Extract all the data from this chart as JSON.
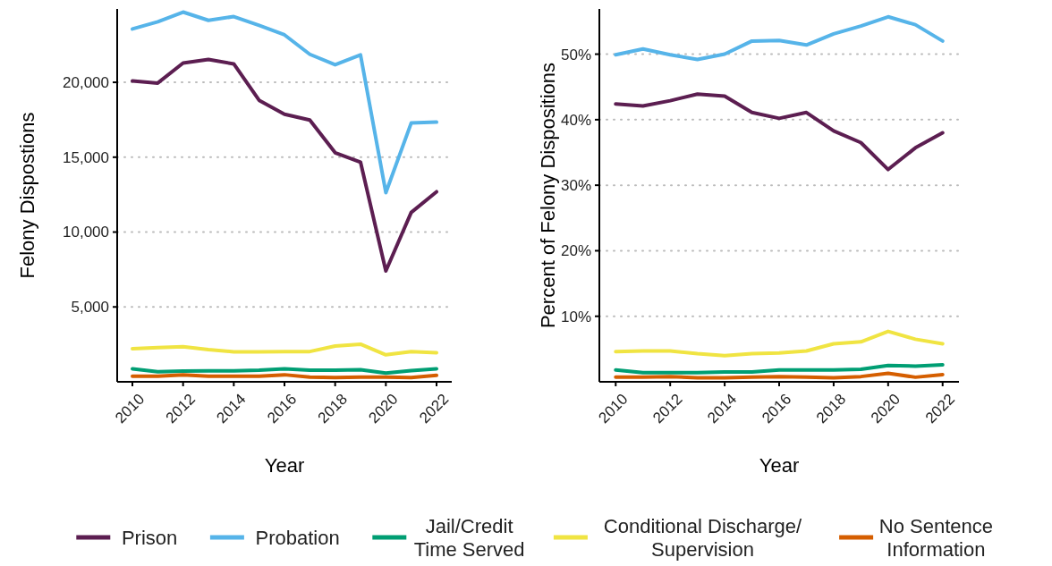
{
  "chart_data": [
    {
      "type": "line",
      "xlabel": "Year",
      "ylabel": "Felony Dispostions",
      "x": [
        2010,
        2011,
        2012,
        2013,
        2014,
        2015,
        2016,
        2017,
        2018,
        2019,
        2020,
        2021,
        2022
      ],
      "xlim": [
        2009.4,
        2022.6
      ],
      "xticks": [
        2010,
        2012,
        2014,
        2016,
        2018,
        2020,
        2022
      ],
      "ylim": [
        0,
        24900
      ],
      "yticks": [
        {
          "value": 5000,
          "label": "5,000"
        },
        {
          "value": 10000,
          "label": "10,000"
        },
        {
          "value": 15000,
          "label": "15,000"
        },
        {
          "value": 20000,
          "label": "20,000"
        }
      ],
      "grid": "y",
      "legend": "bottom",
      "series": [
        {
          "name": "Prison",
          "color": "#5c1e51",
          "values": [
            20090,
            19950,
            21290,
            21530,
            21230,
            18800,
            17870,
            17480,
            15300,
            14670,
            7400,
            11310,
            12690
          ]
        },
        {
          "name": "Probation",
          "color": "#56b4e9",
          "values": [
            23560,
            24040,
            24690,
            24140,
            24390,
            23800,
            23170,
            21870,
            21170,
            21830,
            12630,
            17280,
            17340
          ]
        },
        {
          "name": "Jail/Credit\nTime Served",
          "color": "#009e73",
          "values": [
            870,
            670,
            710,
            730,
            730,
            770,
            870,
            770,
            770,
            810,
            580,
            750,
            870
          ]
        },
        {
          "name": "Conditional Discharge/\nSupervision",
          "color": "#f0e442",
          "values": [
            2210,
            2290,
            2350,
            2150,
            2000,
            2000,
            2020,
            2020,
            2390,
            2510,
            1800,
            2020,
            1940
          ]
        },
        {
          "name": "No Sentence\nInformation",
          "color": "#d55e00",
          "values": [
            370,
            370,
            470,
            370,
            370,
            370,
            470,
            310,
            280,
            310,
            310,
            280,
            430
          ]
        }
      ]
    },
    {
      "type": "line",
      "xlabel": "Year",
      "ylabel": "Percent of Felony Dispositions",
      "x": [
        2010,
        2011,
        2012,
        2013,
        2014,
        2015,
        2016,
        2017,
        2018,
        2019,
        2020,
        2021,
        2022
      ],
      "xlim": [
        2009.4,
        2022.6
      ],
      "xticks": [
        2010,
        2012,
        2014,
        2016,
        2018,
        2020,
        2022
      ],
      "ylim": [
        0,
        56.9
      ],
      "yticks": [
        {
          "value": 10,
          "label": "10%"
        },
        {
          "value": 20,
          "label": "20%"
        },
        {
          "value": 30,
          "label": "30%"
        },
        {
          "value": 40,
          "label": "40%"
        },
        {
          "value": 50,
          "label": "50%"
        }
      ],
      "grid": "y",
      "series": [
        {
          "color": "#5c1e51",
          "values": [
            42.4,
            42.1,
            42.9,
            43.9,
            43.6,
            41.1,
            40.2,
            41.1,
            38.3,
            36.5,
            32.4,
            35.7,
            38.0
          ]
        },
        {
          "color": "#56b4e9",
          "values": [
            49.9,
            50.8,
            49.9,
            49.2,
            50.0,
            52.0,
            52.1,
            51.4,
            53.1,
            54.3,
            55.7,
            54.5,
            52.0
          ]
        },
        {
          "color": "#009e73",
          "values": [
            1.8,
            1.4,
            1.4,
            1.4,
            1.5,
            1.5,
            1.8,
            1.8,
            1.8,
            1.9,
            2.5,
            2.4,
            2.6
          ]
        },
        {
          "color": "#f0e442",
          "values": [
            4.6,
            4.7,
            4.7,
            4.3,
            4.0,
            4.3,
            4.4,
            4.7,
            5.8,
            6.1,
            7.7,
            6.5,
            5.8
          ]
        },
        {
          "color": "#d55e00",
          "values": [
            0.7,
            0.7,
            0.8,
            0.6,
            0.6,
            0.7,
            0.8,
            0.7,
            0.6,
            0.8,
            1.3,
            0.7,
            1.1
          ]
        }
      ]
    }
  ]
}
